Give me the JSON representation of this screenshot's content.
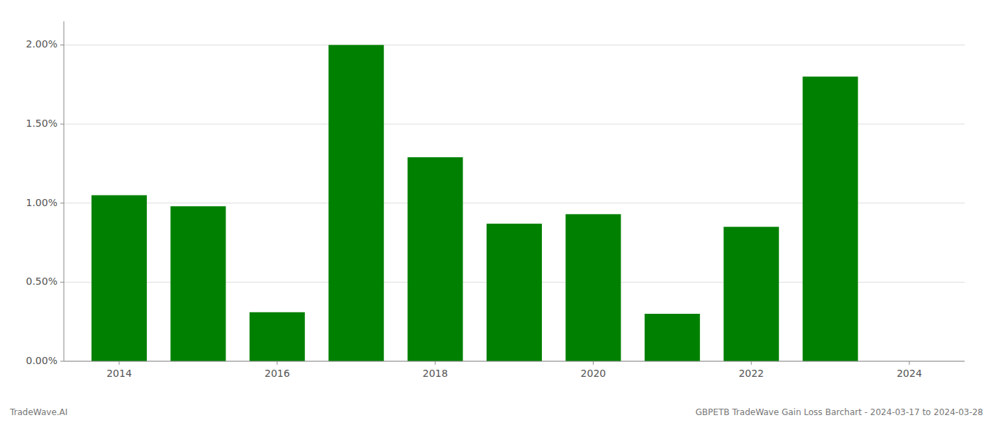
{
  "chart_data": {
    "type": "bar",
    "x": [
      2014,
      2015,
      2016,
      2017,
      2018,
      2019,
      2020,
      2021,
      2022,
      2023
    ],
    "values": [
      0.0105,
      0.0098,
      0.0031,
      0.02,
      0.0129,
      0.0087,
      0.0093,
      0.003,
      0.0085,
      0.018
    ],
    "color": "#008000",
    "xlim": [
      2013.3,
      2024.7
    ],
    "xticks": [
      2014,
      2016,
      2018,
      2020,
      2022,
      2024
    ],
    "ylim": [
      0,
      0.0215
    ],
    "yticks": [
      {
        "value": 0.0,
        "label": "0.00%"
      },
      {
        "value": 0.005,
        "label": "0.50%"
      },
      {
        "value": 0.01,
        "label": "1.00%"
      },
      {
        "value": 0.015,
        "label": "1.50%"
      },
      {
        "value": 0.02,
        "label": "2.00%"
      }
    ],
    "grid": true,
    "annotations": [
      "TradeWave.AI",
      "GBPETB TradeWave Gain Loss Barchart - 2024-03-17 to 2024-03-28"
    ]
  }
}
